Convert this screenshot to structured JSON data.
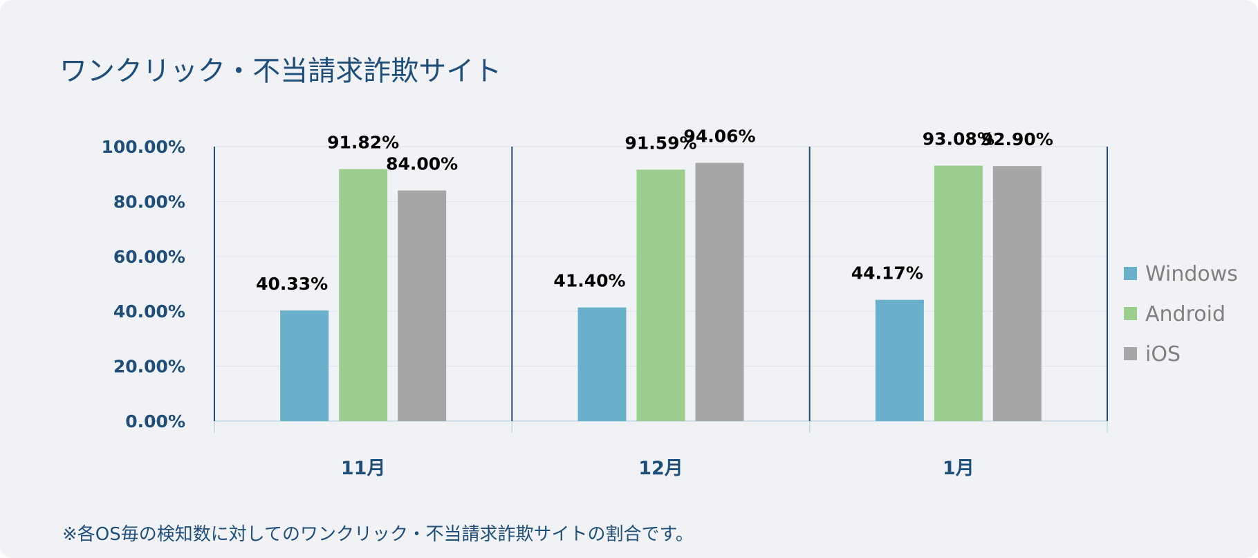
{
  "title": "ワンクリック・不当請求詐欺サイト",
  "footnote": "※各OS毎の検知数に対してのワンクリック・不当請求詐欺サイトの割合です。",
  "chart_data": {
    "type": "bar",
    "categories": [
      "11月",
      "12月",
      "1月"
    ],
    "series": [
      {
        "name": "Windows",
        "values": [
          40.33,
          41.4,
          44.17
        ],
        "color": "#6ab0cb"
      },
      {
        "name": "Android",
        "values": [
          91.82,
          91.59,
          93.08
        ],
        "color": "#9ccf8f"
      },
      {
        "name": "iOS",
        "values": [
          84.0,
          94.06,
          92.9
        ],
        "color": "#a6a6a6"
      }
    ],
    "data_labels": [
      [
        "40.33%",
        "41.40%",
        "44.17%"
      ],
      [
        "91.82%",
        "91.59%",
        "93.08%"
      ],
      [
        "84.00%",
        "94.06%",
        "92.90%"
      ]
    ],
    "y_ticks": [
      "0.00%",
      "20.00%",
      "40.00%",
      "60.00%",
      "80.00%",
      "100.00%"
    ],
    "ylim": [
      0,
      100
    ],
    "grid": true,
    "legend_position": "right",
    "axis_color": "#1f4e79"
  }
}
